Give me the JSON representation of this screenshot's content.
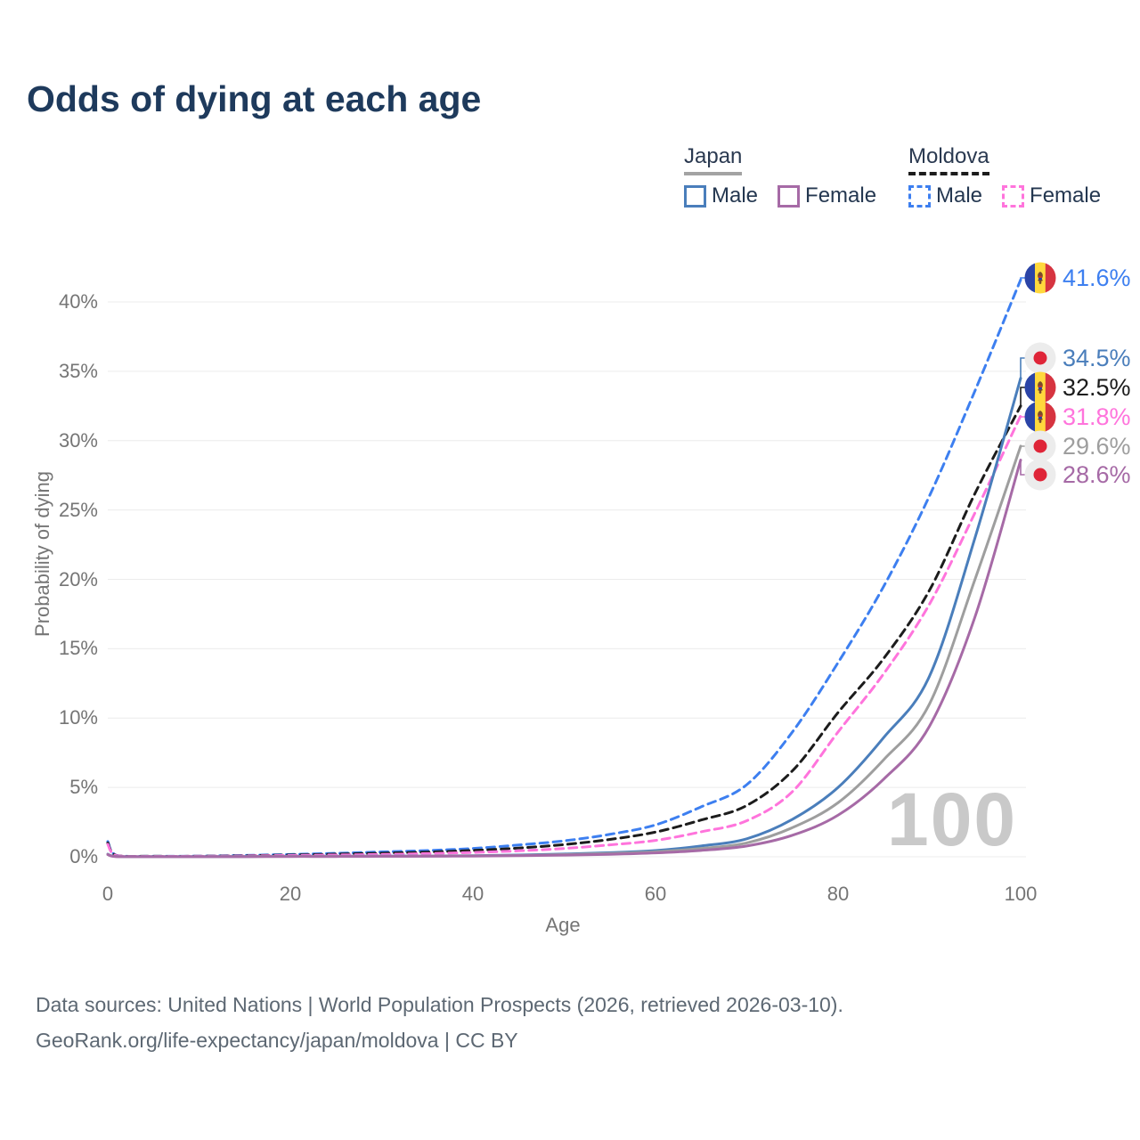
{
  "title": "Odds of dying at each age",
  "legend": {
    "japan": {
      "label": "Japan",
      "items": [
        {
          "series": "japan-male",
          "label": "Male"
        },
        {
          "series": "japan-female",
          "label": "Female"
        }
      ]
    },
    "moldova": {
      "label": "Moldova",
      "items": [
        {
          "series": "moldova-male",
          "label": "Male"
        },
        {
          "series": "moldova-female",
          "label": "Female"
        }
      ]
    }
  },
  "flags": {
    "japan": {
      "bg": "#ececec",
      "sun": "#df2538"
    },
    "moldova": {
      "blue": "#2b44a7",
      "yellow": "#ffd83d",
      "red": "#d63440",
      "emblem": "#7a4a2b",
      "shield_red": "#c23434",
      "shield_blue": "#1d3fae"
    }
  },
  "watermark": "100",
  "footer": {
    "line1": "Data sources: United Nations | World Population Prospects (2026, retrieved 2026-03-10).",
    "line2": "GeoRank.org/life-expectancy/japan/moldova | CC BY"
  },
  "chart_data": {
    "type": "line",
    "title": "Odds of dying at each age",
    "xlabel": "Age",
    "ylabel": "Probability of dying",
    "xlim": [
      0,
      100
    ],
    "ylim": [
      0,
      42.5
    ],
    "grid": "horizontal-only",
    "x_ticks": [
      0,
      20,
      40,
      60,
      80,
      100
    ],
    "x_tick_labels": [
      "0",
      "20",
      "40",
      "60",
      "80",
      "100"
    ],
    "y_ticks": [
      0,
      5,
      10,
      15,
      20,
      25,
      30,
      35,
      40
    ],
    "y_tick_labels": [
      "0%",
      "5%",
      "10%",
      "15%",
      "20%",
      "25%",
      "30%",
      "35%",
      "40%"
    ],
    "hovered_age": "100",
    "ages": [
      0,
      1,
      5,
      10,
      15,
      20,
      25,
      30,
      35,
      40,
      45,
      50,
      55,
      60,
      65,
      70,
      75,
      80,
      85,
      90,
      95,
      100
    ],
    "series": [
      {
        "id": "moldova-male",
        "name": "Moldova Male",
        "country": "Moldova",
        "country_code": "moldova",
        "sex": "Male",
        "dashed": true,
        "color": "#3d7ff0",
        "values": [
          1.1,
          0.09,
          0.04,
          0.05,
          0.1,
          0.17,
          0.25,
          0.35,
          0.45,
          0.6,
          0.85,
          1.15,
          1.62,
          2.3,
          3.6,
          5.2,
          9.0,
          14.0,
          19.5,
          26.0,
          33.6,
          41.6
        ],
        "end_label": "41.6%"
      },
      {
        "id": "moldova-all",
        "name": "Moldova Both sexes",
        "country": "Moldova",
        "country_code": "moldova",
        "sex": "All",
        "dashed": true,
        "color": "#1c1c1c",
        "values": [
          1.0,
          0.08,
          0.04,
          0.04,
          0.08,
          0.13,
          0.19,
          0.26,
          0.34,
          0.46,
          0.63,
          0.88,
          1.25,
          1.78,
          2.65,
          3.7,
          6.2,
          10.4,
          14.3,
          19.2,
          26.2,
          32.5
        ],
        "end_label": "32.5%"
      },
      {
        "id": "moldova-female",
        "name": "Moldova Female",
        "country": "Moldova",
        "country_code": "moldova",
        "sex": "Female",
        "dashed": true,
        "color": "#ff74dc",
        "values": [
          0.9,
          0.07,
          0.03,
          0.04,
          0.06,
          0.1,
          0.13,
          0.17,
          0.23,
          0.31,
          0.43,
          0.6,
          0.86,
          1.18,
          1.8,
          2.6,
          4.7,
          9.0,
          13.2,
          18.2,
          24.8,
          31.8
        ],
        "end_label": "31.8%"
      },
      {
        "id": "japan-male",
        "name": "Japan Male",
        "country": "Japan",
        "country_code": "japan",
        "sex": "Male",
        "dashed": false,
        "color": "#4a7ebb",
        "values": [
          0.19,
          0.02,
          0.01,
          0.01,
          0.02,
          0.04,
          0.04,
          0.05,
          0.06,
          0.08,
          0.13,
          0.2,
          0.3,
          0.45,
          0.78,
          1.3,
          2.7,
          5.0,
          8.6,
          13.0,
          23.0,
          34.5
        ],
        "end_label": "34.5%"
      },
      {
        "id": "japan-all",
        "name": "Japan Both sexes",
        "country": "Japan",
        "country_code": "japan",
        "sex": "All",
        "dashed": false,
        "color": "#9e9e9e",
        "values": [
          0.17,
          0.02,
          0.01,
          0.01,
          0.02,
          0.03,
          0.03,
          0.04,
          0.05,
          0.07,
          0.1,
          0.16,
          0.24,
          0.36,
          0.6,
          1.0,
          2.1,
          3.9,
          7.0,
          11.0,
          20.0,
          29.6
        ],
        "end_label": "29.6%"
      },
      {
        "id": "japan-female",
        "name": "Japan Female",
        "country": "Japan",
        "country_code": "japan",
        "sex": "Female",
        "dashed": false,
        "color": "#a66aa6",
        "values": [
          0.16,
          0.01,
          0.01,
          0.01,
          0.01,
          0.02,
          0.02,
          0.03,
          0.04,
          0.05,
          0.08,
          0.12,
          0.18,
          0.28,
          0.46,
          0.78,
          1.55,
          3.0,
          5.6,
          9.4,
          17.3,
          28.6
        ],
        "end_label": "28.6%"
      }
    ]
  }
}
